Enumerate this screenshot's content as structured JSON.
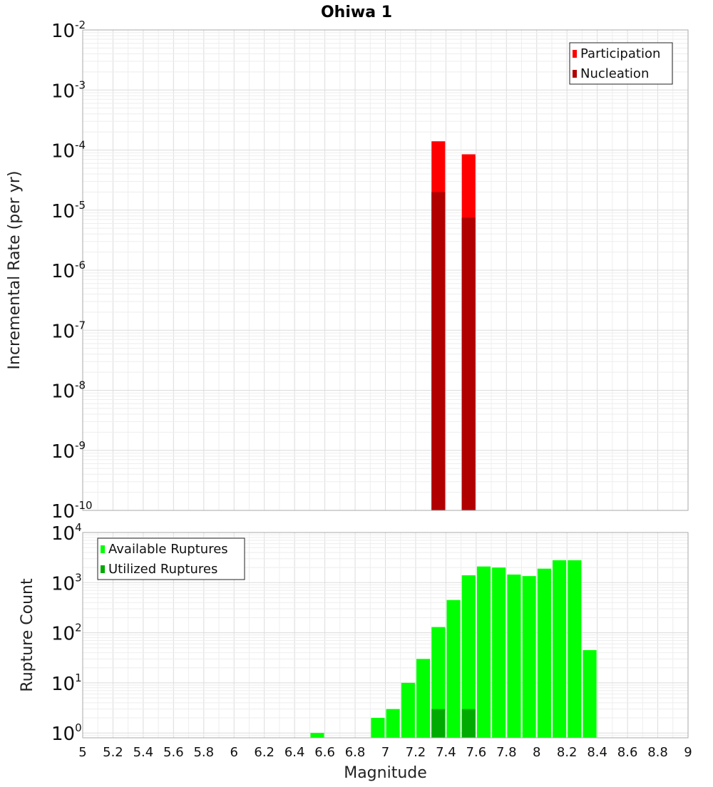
{
  "title": "Ohiwa 1",
  "xlabel": "Magnitude",
  "x_ticks": [
    "5",
    "5.2",
    "5.4",
    "5.6",
    "5.8",
    "6",
    "6.2",
    "6.4",
    "6.6",
    "6.8",
    "7",
    "7.2",
    "7.4",
    "7.6",
    "7.8",
    "8",
    "8.2",
    "8.4",
    "8.6",
    "8.8",
    "9"
  ],
  "chart_data": [
    {
      "type": "bar",
      "ylabel": "Incremental Rate (per yr)",
      "xlim": [
        5,
        9
      ],
      "ylim": [
        1e-10,
        0.01
      ],
      "yscale": "log",
      "grid": true,
      "legend_position": "top-right",
      "y_ticks": [
        {
          "base": "10",
          "exp": "-2",
          "value": 0.01
        },
        {
          "base": "10",
          "exp": "-3",
          "value": 0.001
        },
        {
          "base": "10",
          "exp": "-4",
          "value": 0.0001
        },
        {
          "base": "10",
          "exp": "-5",
          "value": 1e-05
        },
        {
          "base": "10",
          "exp": "-6",
          "value": 1e-06
        },
        {
          "base": "10",
          "exp": "-7",
          "value": 1e-07
        },
        {
          "base": "10",
          "exp": "-8",
          "value": 1e-08
        },
        {
          "base": "10",
          "exp": "-9",
          "value": 1e-09
        },
        {
          "base": "10",
          "exp": "-10",
          "value": 1e-10
        }
      ],
      "bar_width": 0.09,
      "series": [
        {
          "name": "Participation",
          "color": "#ff0000",
          "points": [
            {
              "x": 7.35,
              "y": 0.00014
            },
            {
              "x": 7.55,
              "y": 8.5e-05
            }
          ]
        },
        {
          "name": "Nucleation",
          "color": "#b00000",
          "points": [
            {
              "x": 7.35,
              "y": 2e-05
            },
            {
              "x": 7.55,
              "y": 7.5e-06
            }
          ]
        }
      ]
    },
    {
      "type": "bar",
      "ylabel": "Rupture Count",
      "xlim": [
        5,
        9
      ],
      "ylim": [
        0.8,
        10000
      ],
      "yscale": "log",
      "grid": true,
      "legend_position": "top-left",
      "y_ticks": [
        {
          "base": "10",
          "exp": "4",
          "value": 10000
        },
        {
          "base": "10",
          "exp": "3",
          "value": 1000
        },
        {
          "base": "10",
          "exp": "2",
          "value": 100
        },
        {
          "base": "10",
          "exp": "1",
          "value": 10
        },
        {
          "base": "10",
          "exp": "0",
          "value": 1
        }
      ],
      "bar_width": 0.09,
      "series": [
        {
          "name": "Available Ruptures",
          "color": "#00ff00",
          "points": [
            {
              "x": 6.55,
              "y": 1
            },
            {
              "x": 6.95,
              "y": 2
            },
            {
              "x": 7.05,
              "y": 3
            },
            {
              "x": 7.15,
              "y": 10
            },
            {
              "x": 7.25,
              "y": 30
            },
            {
              "x": 7.35,
              "y": 130
            },
            {
              "x": 7.45,
              "y": 450
            },
            {
              "x": 7.55,
              "y": 1400
            },
            {
              "x": 7.65,
              "y": 2100
            },
            {
              "x": 7.75,
              "y": 2000
            },
            {
              "x": 7.85,
              "y": 1450
            },
            {
              "x": 7.95,
              "y": 1350
            },
            {
              "x": 8.05,
              "y": 1900
            },
            {
              "x": 8.15,
              "y": 2800
            },
            {
              "x": 8.25,
              "y": 2800
            },
            {
              "x": 8.35,
              "y": 45
            }
          ]
        },
        {
          "name": "Utilized Ruptures",
          "color": "#00aa00",
          "points": [
            {
              "x": 7.35,
              "y": 3
            },
            {
              "x": 7.55,
              "y": 3
            }
          ]
        }
      ]
    }
  ]
}
